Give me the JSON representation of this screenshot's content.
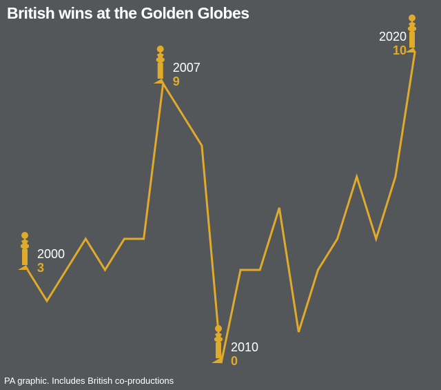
{
  "chart_data": {
    "type": "line",
    "title": "British wins at the Golden Globes",
    "note": "PA graphic. Includes British co-productions",
    "x": [
      2000,
      2001,
      2002,
      2003,
      2004,
      2005,
      2006,
      2007,
      2008,
      2009,
      2010,
      2011,
      2012,
      2013,
      2014,
      2015,
      2016,
      2017,
      2018,
      2019,
      2020
    ],
    "values": [
      3,
      2,
      3,
      4,
      3,
      4,
      4,
      9,
      8,
      7,
      0,
      3,
      3,
      5,
      1,
      3,
      4,
      6,
      4,
      6,
      10
    ],
    "ylim": [
      0,
      10
    ],
    "grid": false,
    "annotations": [
      {
        "year": 2000,
        "year_label": "2000",
        "value_label": "3"
      },
      {
        "year": 2007,
        "year_label": "2007",
        "value_label": "9"
      },
      {
        "year": 2010,
        "year_label": "2010",
        "value_label": "0"
      },
      {
        "year": 2020,
        "year_label": "2020",
        "value_label": "10"
      }
    ],
    "colors": {
      "line": "#e0aa2a",
      "background": "#54575a",
      "text": "#ffffff"
    }
  }
}
